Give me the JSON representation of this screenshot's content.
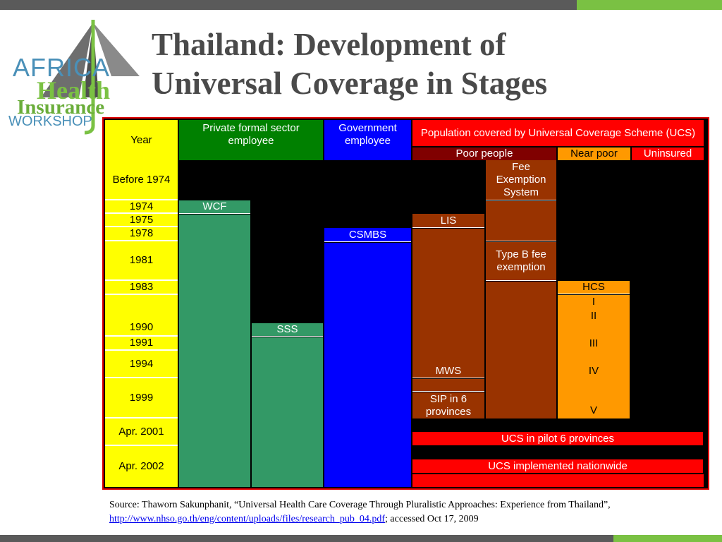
{
  "colors": {
    "accent_green": "#7ac143",
    "bar_gray": "#5a5a5a",
    "title_gray": "#4a4a4a"
  },
  "logo": {
    "line1": "AFRICA",
    "line2": "Health",
    "line3": "Insurance",
    "line4": "WORKSHOP"
  },
  "slide": {
    "title_line1": "Thailand: Development of",
    "title_line2": "Universal Coverage in Stages"
  },
  "table": {
    "headers": {
      "year": "Year",
      "private": "Private formal sector employee",
      "government": "Government employee",
      "ucs": "Population covered by Universal Coverage Scheme (UCS)",
      "poor": "Poor people",
      "near_poor": "Near poor",
      "uninsured": "Uninsured"
    },
    "years": [
      "Before 1974",
      "1974",
      "1975",
      "1978",
      "1981",
      "1983",
      "1990",
      "1991",
      "1994",
      "1999",
      "Apr. 2001",
      "Apr. 2002"
    ],
    "schemes": {
      "wcf": "WCF",
      "sss": "SSS",
      "csmbs": "CSMBS",
      "lis": "LIS",
      "mws": "MWS",
      "sip": "SIP in 6 provinces",
      "fee_exemption": "Fee Exemption System",
      "type_b": "Type B fee exemption",
      "hcs": "HCS",
      "hcs_phases": [
        "I",
        "II",
        "III",
        "IV",
        "V"
      ],
      "ucs_pilot": "UCS in pilot 6 provinces",
      "ucs_nationwide": "UCS implemented nationwide"
    }
  },
  "source": {
    "prefix": "Source: Thaworn Sakunphanit, “Universal Health Care Coverage Through Pluralistic Approaches: Experience from Thailand”, ",
    "link": "http://www.nhso.go.th/eng/content/uploads/files/research_pub_04.pdf",
    "suffix": "; accessed Oct 17, 2009"
  }
}
